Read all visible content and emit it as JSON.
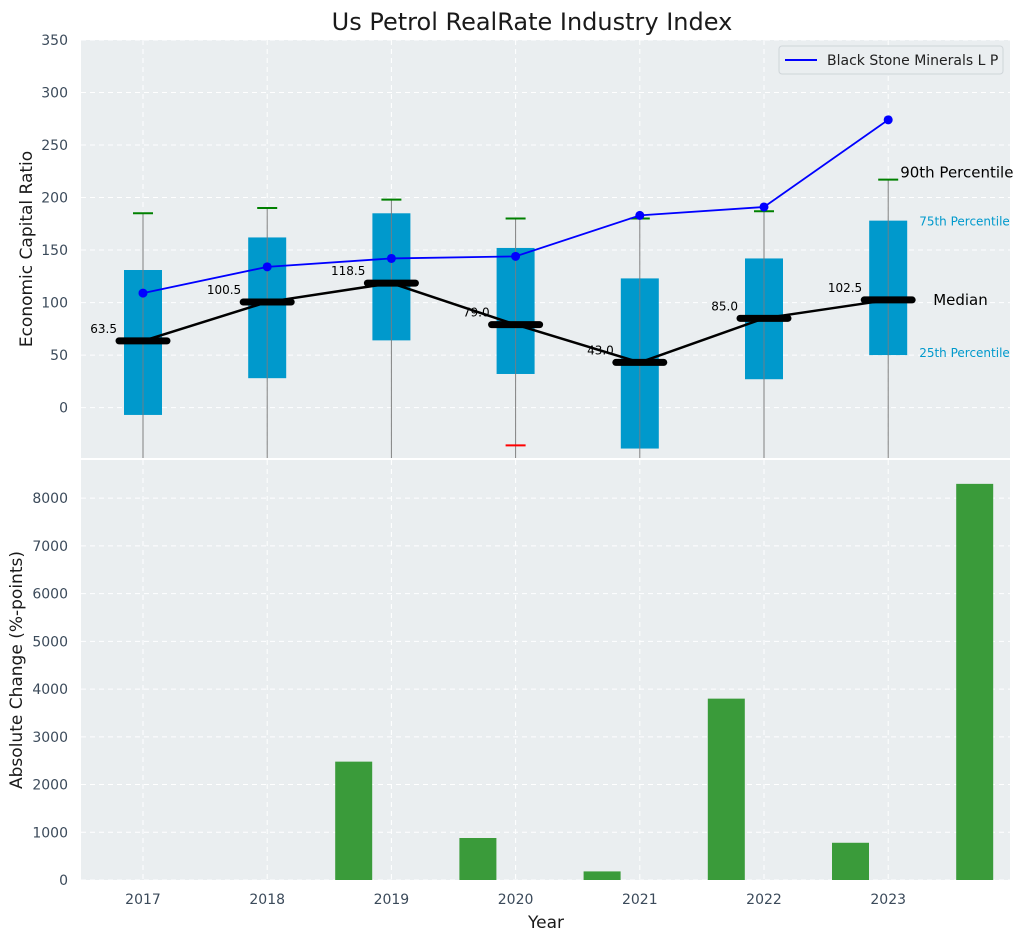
{
  "chart_data": {
    "title": "Us Petrol RealRate Industry Index",
    "years": [
      "2017",
      "2018",
      "2019",
      "2020",
      "2021",
      "2022",
      "2023"
    ],
    "xlabel": "Year",
    "colors": {
      "background": "#eaeef0",
      "box": "#0099cc",
      "company_line": "#0000ff",
      "median_line": "#000000",
      "upper_cap": "#008000",
      "lower_cap_2020": "#ff0000",
      "bar": "#3a9b3a",
      "percentile_label": "#0099cc"
    },
    "top": {
      "type": "box",
      "ylabel": "Economic Capital Ratio",
      "ylim": [
        -48,
        350
      ],
      "yticks": [
        "0",
        "50",
        "100",
        "150",
        "200",
        "250",
        "300",
        "350"
      ],
      "ytick_values": [
        0,
        50,
        100,
        150,
        200,
        250,
        300,
        350
      ],
      "p25": [
        -7,
        28,
        64,
        32,
        -39,
        27,
        50
      ],
      "p75": [
        131,
        162,
        185,
        152,
        123,
        142,
        178
      ],
      "p90": [
        185,
        190,
        198,
        180,
        180,
        187,
        217
      ],
      "p10": [
        null,
        null,
        null,
        -36,
        null,
        null,
        null
      ],
      "median": [
        63.5,
        100.5,
        118.5,
        79.0,
        43.0,
        85.0,
        102.5
      ],
      "median_labels": [
        "63.5",
        "100.5",
        "118.5",
        "79.0",
        "43.0",
        "85.0",
        "102.5"
      ],
      "company": {
        "name": "Black Stone Minerals L P",
        "values": [
          109,
          134,
          142,
          144,
          183,
          191,
          274
        ]
      },
      "annotations": {
        "p90": "90th Percentile",
        "p75": "75th Percentile",
        "median": "Median",
        "p25": "25th Percentile"
      }
    },
    "bottom": {
      "type": "bar",
      "ylabel": "Absolute Change (%-points)",
      "ylim": [
        0,
        8800
      ],
      "yticks": [
        "0",
        "1000",
        "2000",
        "3000",
        "4000",
        "5000",
        "6000",
        "7000",
        "8000"
      ],
      "ytick_values": [
        0,
        1000,
        2000,
        3000,
        4000,
        5000,
        6000,
        7000,
        8000
      ],
      "values": [
        0,
        2480,
        880,
        180,
        3800,
        780,
        8300
      ]
    }
  }
}
